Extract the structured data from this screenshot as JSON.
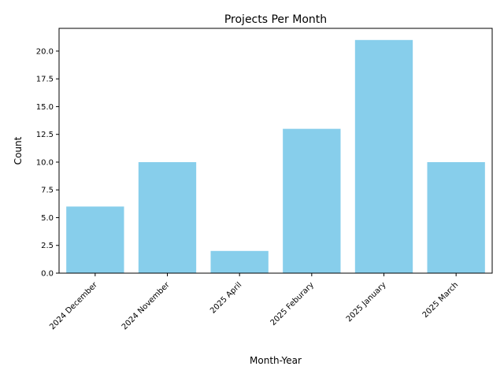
{
  "chart_data": {
    "type": "bar",
    "title": "Projects Per Month",
    "xlabel": "Month-Year",
    "ylabel": "Count",
    "categories": [
      "2024 December",
      "2024 November",
      "2025 April",
      "2025 Feburary",
      "2025 January",
      "2025 March"
    ],
    "values": [
      6,
      10,
      2,
      13,
      21,
      10
    ],
    "ylim": [
      0,
      22.05
    ],
    "yticks": [
      "0.0",
      "2.5",
      "5.0",
      "7.5",
      "10.0",
      "12.5",
      "15.0",
      "17.5",
      "20.0"
    ],
    "bar_color": "#87ceeb",
    "grid": false,
    "legend": "none"
  }
}
